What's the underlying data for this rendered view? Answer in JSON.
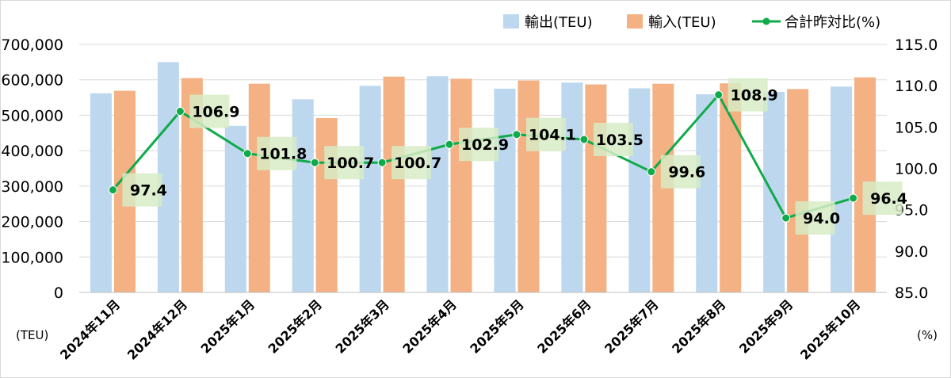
{
  "chart_data": {
    "type": "bar",
    "categories": [
      "2024年11月",
      "2024年12月",
      "2025年1月",
      "2025年2月",
      "2025年3月",
      "2025年4月",
      "2025年5月",
      "2025年6月",
      "2025年7月",
      "2025年8月",
      "2025年9月",
      "2025年10月"
    ],
    "series": [
      {
        "name": "輸出(TEU)",
        "type": "bar",
        "axis": "left",
        "color": "#bdd7ee",
        "values": [
          562000,
          650000,
          470000,
          545000,
          583000,
          610000,
          575000,
          592000,
          576000,
          559000,
          566000,
          581000
        ]
      },
      {
        "name": "輸入(TEU)",
        "type": "bar",
        "axis": "left",
        "color": "#f4b183",
        "values": [
          569000,
          605000,
          589000,
          492000,
          609000,
          603000,
          598000,
          587000,
          589000,
          590000,
          574000,
          607000
        ]
      },
      {
        "name": "合計昨対比(%)",
        "type": "line",
        "axis": "right",
        "color": "#0faa4a",
        "values": [
          97.4,
          106.9,
          101.8,
          100.7,
          100.7,
          102.9,
          104.1,
          103.5,
          99.6,
          108.9,
          94.0,
          96.4
        ],
        "labels": [
          "97.4",
          "106.9",
          "101.8",
          "100.7",
          "100.7",
          "102.9",
          "104.1",
          "103.5",
          "99.6",
          "108.9",
          "94.0",
          "96.4"
        ]
      }
    ],
    "y_left": {
      "unit_label": "(TEU)",
      "range": [
        0,
        700000
      ],
      "ticks": [
        0,
        100000,
        200000,
        300000,
        400000,
        500000,
        600000,
        700000
      ],
      "tick_labels": [
        "0",
        "100,000",
        "200,000",
        "300,000",
        "400,000",
        "500,000",
        "600,000",
        "700,000"
      ]
    },
    "y_right": {
      "unit_label": "(%)",
      "range": [
        85,
        115
      ],
      "ticks": [
        85,
        90,
        95,
        100,
        105,
        110,
        115
      ],
      "tick_labels": [
        "85.0",
        "90.0",
        "95.0",
        "100.0",
        "105.0",
        "110.0",
        "115.0"
      ]
    },
    "grid": true,
    "legend_position": "top-right",
    "label_box_color": "#d7ecc6"
  }
}
